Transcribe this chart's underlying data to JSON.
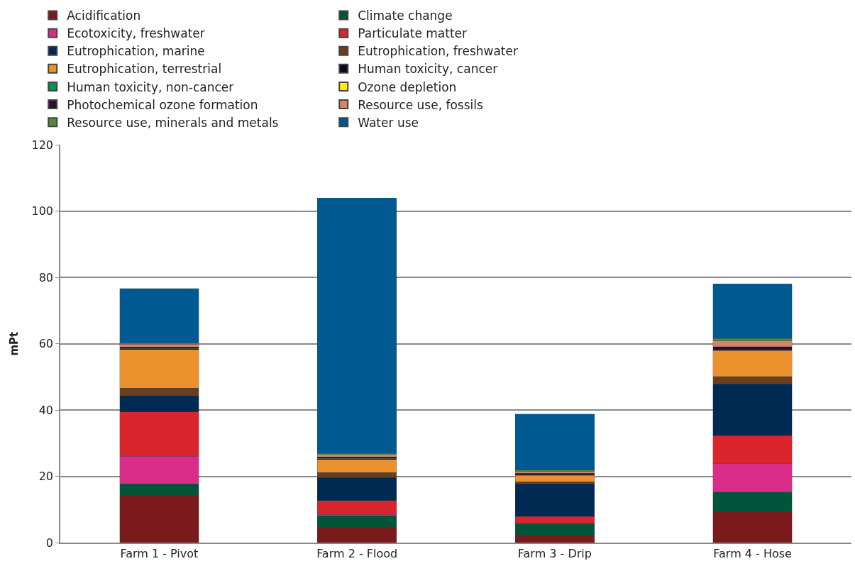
{
  "chart_data": {
    "type": "bar",
    "stacked": true,
    "ylabel": "mPt",
    "categories": [
      "Farm 1 - Pivot",
      "Farm 2 - Flood",
      "Farm 3 - Drip",
      "Farm 4 - Hose"
    ],
    "series": [
      {
        "name": "Acidification",
        "color": "#7a1a1c",
        "values": [
          14.4,
          4.8,
          2.2,
          9.4
        ]
      },
      {
        "name": "Climate change",
        "color": "#00543a",
        "values": [
          3.3,
          3.3,
          3.5,
          5.8
        ]
      },
      {
        "name": "Ecotoxicity, freshwater",
        "color": "#d92d87",
        "values": [
          8.4,
          0.4,
          0.2,
          8.6
        ]
      },
      {
        "name": "Particulate matter",
        "color": "#d9252b",
        "values": [
          13.3,
          4.2,
          2.0,
          8.5
        ]
      },
      {
        "name": "Eutrophication, marine",
        "color": "#002a52",
        "values": [
          5.0,
          6.9,
          9.8,
          15.6
        ]
      },
      {
        "name": "Eutrophication, freshwater",
        "color": "#6b3f1e",
        "values": [
          2.2,
          1.5,
          0.7,
          2.2
        ]
      },
      {
        "name": "Eutrophication, terrestrial",
        "color": "#eb922e",
        "values": [
          11.7,
          4.0,
          1.9,
          7.9
        ]
      },
      {
        "name": "Human toxicity, cancer",
        "color": "#0a0a1e",
        "values": [
          0.2,
          0.2,
          0.2,
          0.2
        ]
      },
      {
        "name": "Human toxicity, non-cancer",
        "color": "#00964f",
        "values": [
          0.1,
          0.1,
          0.1,
          0.1
        ]
      },
      {
        "name": "Ozone depletion",
        "color": "#ffee00",
        "values": [
          0,
          0,
          0,
          0
        ]
      },
      {
        "name": "Photochemical ozone formation",
        "color": "#2d0f35",
        "values": [
          0.4,
          0.5,
          0.3,
          0.8
        ]
      },
      {
        "name": "Resource use, fossils",
        "color": "#d4846a",
        "values": [
          0.9,
          0.7,
          0.6,
          1.7
        ]
      },
      {
        "name": "Resource use, minerals and metals",
        "color": "#4f8a3c",
        "values": [
          0.3,
          0.3,
          0.4,
          0.8
        ]
      },
      {
        "name": "Water use",
        "color": "#005a91",
        "values": [
          16.5,
          77.1,
          16.9,
          16.5
        ]
      }
    ],
    "ylim": [
      0,
      120
    ],
    "yticks": [
      0,
      20,
      40,
      60,
      80,
      100,
      120
    ],
    "grid": "y",
    "legend": "top"
  }
}
